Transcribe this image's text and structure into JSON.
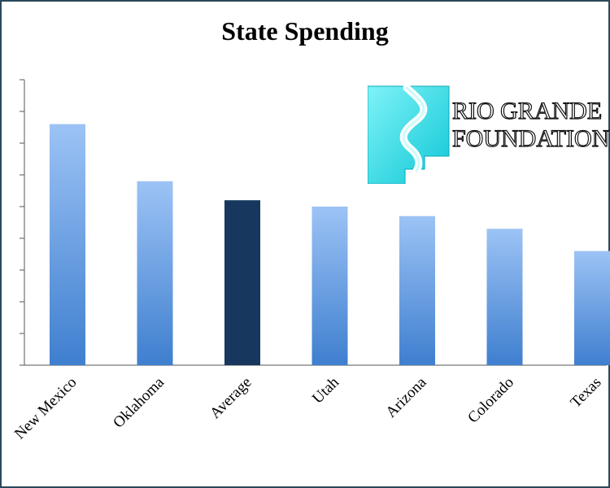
{
  "chart_data": {
    "type": "bar",
    "title": "State Spending",
    "categories": [
      "New Mexico",
      "Oklahoma",
      "Average",
      "Utah",
      "Arizona",
      "Colorado",
      "Texas"
    ],
    "values": [
      7.6,
      5.8,
      5.2,
      5.0,
      4.7,
      4.3,
      3.6
    ],
    "highlight": "Average",
    "ylim": [
      0,
      9
    ],
    "grid": false,
    "colors": {
      "bar_top": "#9cc3f5",
      "bar_bottom": "#3f7fcf",
      "highlight": "#17375e",
      "axis": "#555555"
    }
  },
  "logo": {
    "line1": "RIO GRANDE",
    "line2": "FOUNDATION",
    "accent": "#19d9e6"
  }
}
